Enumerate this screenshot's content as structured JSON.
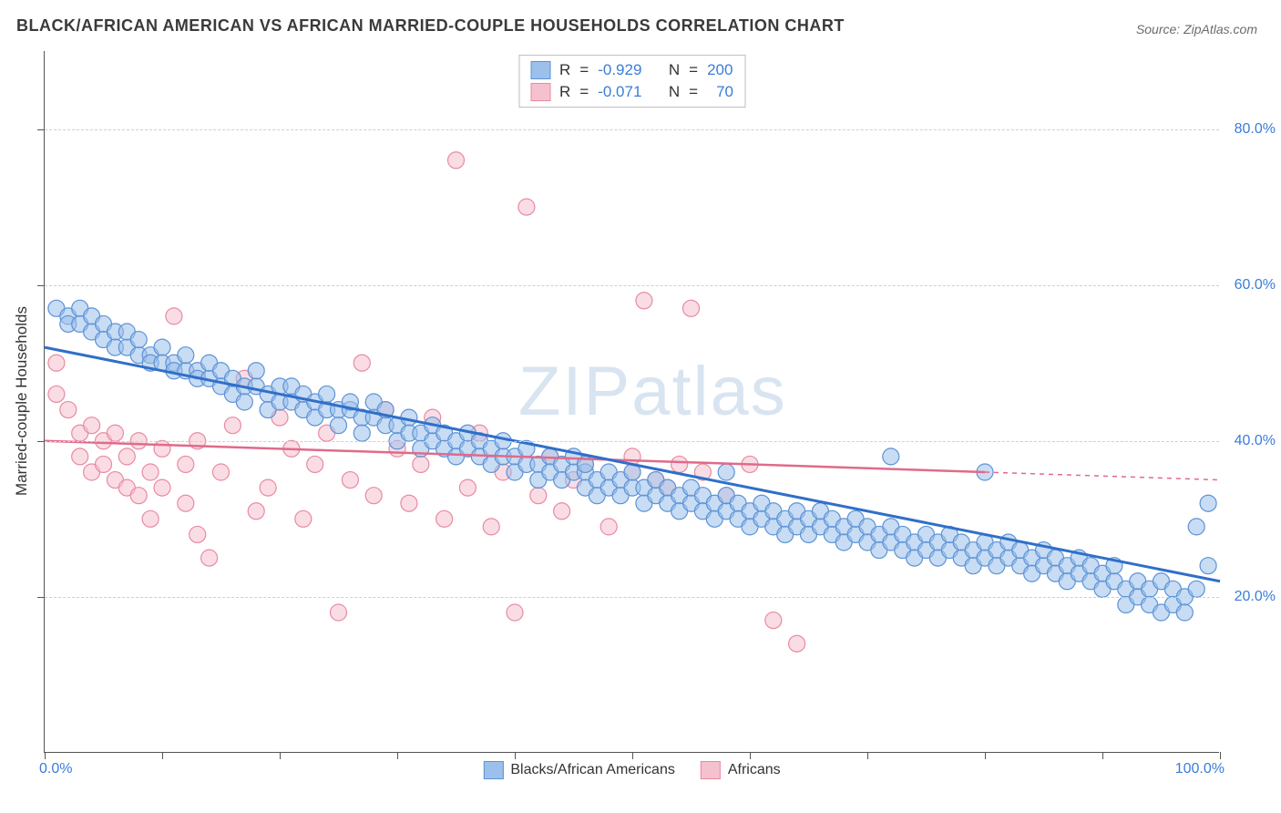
{
  "title": "BLACK/AFRICAN AMERICAN VS AFRICAN MARRIED-COUPLE HOUSEHOLDS CORRELATION CHART",
  "source_label": "Source: ZipAtlas.com",
  "ylabel": "Married-couple Households",
  "watermark": "ZIPatlas",
  "chart": {
    "type": "scatter",
    "xlim": [
      0,
      100
    ],
    "ylim": [
      0,
      90
    ],
    "ytick_positions": [
      20,
      40,
      60,
      80
    ],
    "ytick_labels": [
      "20.0%",
      "40.0%",
      "60.0%",
      "80.0%"
    ],
    "xtick_positions": [
      0,
      10,
      20,
      30,
      40,
      50,
      60,
      70,
      80,
      90,
      100
    ],
    "xtick_left": "0.0%",
    "xtick_right": "100.0%",
    "background_color": "#ffffff",
    "grid_color": "#cfcfcf",
    "marker_radius": 9,
    "marker_opacity": 0.55,
    "series": [
      {
        "name": "Blacks/African Americans",
        "color_fill": "#9bc0eb",
        "color_stroke": "#5c93d6",
        "line_color": "#2f6fc9",
        "line_width": 3,
        "R_label": "R",
        "R_value": "-0.929",
        "N_label": "N",
        "N_value": "200",
        "trend": {
          "x1": 0,
          "y1": 52,
          "x2": 100,
          "y2": 22
        },
        "trend_dash_after": 100,
        "points": [
          [
            1,
            57
          ],
          [
            2,
            56
          ],
          [
            2,
            55
          ],
          [
            3,
            57
          ],
          [
            3,
            55
          ],
          [
            4,
            54
          ],
          [
            4,
            56
          ],
          [
            5,
            55
          ],
          [
            5,
            53
          ],
          [
            6,
            54
          ],
          [
            6,
            52
          ],
          [
            7,
            52
          ],
          [
            7,
            54
          ],
          [
            8,
            51
          ],
          [
            8,
            53
          ],
          [
            9,
            51
          ],
          [
            9,
            50
          ],
          [
            10,
            52
          ],
          [
            10,
            50
          ],
          [
            11,
            50
          ],
          [
            11,
            49
          ],
          [
            12,
            49
          ],
          [
            12,
            51
          ],
          [
            13,
            49
          ],
          [
            13,
            48
          ],
          [
            14,
            48
          ],
          [
            14,
            50
          ],
          [
            15,
            49
          ],
          [
            15,
            47
          ],
          [
            16,
            48
          ],
          [
            16,
            46
          ],
          [
            17,
            47
          ],
          [
            17,
            45
          ],
          [
            18,
            47
          ],
          [
            18,
            49
          ],
          [
            19,
            46
          ],
          [
            19,
            44
          ],
          [
            20,
            47
          ],
          [
            20,
            45
          ],
          [
            21,
            45
          ],
          [
            21,
            47
          ],
          [
            22,
            46
          ],
          [
            22,
            44
          ],
          [
            23,
            45
          ],
          [
            23,
            43
          ],
          [
            24,
            44
          ],
          [
            24,
            46
          ],
          [
            25,
            44
          ],
          [
            25,
            42
          ],
          [
            26,
            44
          ],
          [
            26,
            45
          ],
          [
            27,
            43
          ],
          [
            27,
            41
          ],
          [
            28,
            43
          ],
          [
            28,
            45
          ],
          [
            29,
            42
          ],
          [
            29,
            44
          ],
          [
            30,
            42
          ],
          [
            30,
            40
          ],
          [
            31,
            43
          ],
          [
            31,
            41
          ],
          [
            32,
            41
          ],
          [
            32,
            39
          ],
          [
            33,
            40
          ],
          [
            33,
            42
          ],
          [
            34,
            41
          ],
          [
            34,
            39
          ],
          [
            35,
            40
          ],
          [
            35,
            38
          ],
          [
            36,
            39
          ],
          [
            36,
            41
          ],
          [
            37,
            40
          ],
          [
            37,
            38
          ],
          [
            38,
            39
          ],
          [
            38,
            37
          ],
          [
            39,
            38
          ],
          [
            39,
            40
          ],
          [
            40,
            38
          ],
          [
            40,
            36
          ],
          [
            41,
            37
          ],
          [
            41,
            39
          ],
          [
            42,
            37
          ],
          [
            42,
            35
          ],
          [
            43,
            38
          ],
          [
            43,
            36
          ],
          [
            44,
            37
          ],
          [
            44,
            35
          ],
          [
            45,
            36
          ],
          [
            45,
            38
          ],
          [
            46,
            36
          ],
          [
            46,
            34
          ],
          [
            47,
            35
          ],
          [
            47,
            33
          ],
          [
            48,
            36
          ],
          [
            48,
            34
          ],
          [
            49,
            35
          ],
          [
            49,
            33
          ],
          [
            50,
            34
          ],
          [
            50,
            36
          ],
          [
            51,
            34
          ],
          [
            51,
            32
          ],
          [
            52,
            33
          ],
          [
            52,
            35
          ],
          [
            53,
            34
          ],
          [
            53,
            32
          ],
          [
            54,
            33
          ],
          [
            54,
            31
          ],
          [
            55,
            32
          ],
          [
            55,
            34
          ],
          [
            56,
            33
          ],
          [
            56,
            31
          ],
          [
            57,
            32
          ],
          [
            57,
            30
          ],
          [
            58,
            31
          ],
          [
            58,
            33
          ],
          [
            59,
            32
          ],
          [
            59,
            30
          ],
          [
            60,
            31
          ],
          [
            60,
            29
          ],
          [
            61,
            30
          ],
          [
            61,
            32
          ],
          [
            62,
            31
          ],
          [
            62,
            29
          ],
          [
            63,
            30
          ],
          [
            63,
            28
          ],
          [
            64,
            29
          ],
          [
            64,
            31
          ],
          [
            65,
            30
          ],
          [
            65,
            28
          ],
          [
            66,
            29
          ],
          [
            66,
            31
          ],
          [
            67,
            28
          ],
          [
            67,
            30
          ],
          [
            68,
            29
          ],
          [
            68,
            27
          ],
          [
            69,
            28
          ],
          [
            69,
            30
          ],
          [
            70,
            29
          ],
          [
            70,
            27
          ],
          [
            71,
            28
          ],
          [
            71,
            26
          ],
          [
            72,
            27
          ],
          [
            72,
            29
          ],
          [
            73,
            28
          ],
          [
            73,
            26
          ],
          [
            74,
            27
          ],
          [
            74,
            25
          ],
          [
            75,
            28
          ],
          [
            75,
            26
          ],
          [
            76,
            27
          ],
          [
            76,
            25
          ],
          [
            77,
            26
          ],
          [
            77,
            28
          ],
          [
            78,
            27
          ],
          [
            78,
            25
          ],
          [
            79,
            26
          ],
          [
            79,
            24
          ],
          [
            80,
            25
          ],
          [
            80,
            27
          ],
          [
            81,
            26
          ],
          [
            81,
            24
          ],
          [
            82,
            25
          ],
          [
            82,
            27
          ],
          [
            83,
            24
          ],
          [
            83,
            26
          ],
          [
            84,
            25
          ],
          [
            84,
            23
          ],
          [
            85,
            24
          ],
          [
            85,
            26
          ],
          [
            86,
            25
          ],
          [
            86,
            23
          ],
          [
            87,
            24
          ],
          [
            87,
            22
          ],
          [
            88,
            23
          ],
          [
            88,
            25
          ],
          [
            89,
            24
          ],
          [
            89,
            22
          ],
          [
            90,
            23
          ],
          [
            90,
            21
          ],
          [
            91,
            22
          ],
          [
            91,
            24
          ],
          [
            92,
            21
          ],
          [
            92,
            19
          ],
          [
            93,
            22
          ],
          [
            93,
            20
          ],
          [
            94,
            21
          ],
          [
            94,
            19
          ],
          [
            95,
            18
          ],
          [
            95,
            22
          ],
          [
            96,
            21
          ],
          [
            96,
            19
          ],
          [
            97,
            20
          ],
          [
            97,
            18
          ],
          [
            98,
            21
          ],
          [
            98,
            29
          ],
          [
            99,
            24
          ],
          [
            99,
            32
          ],
          [
            46,
            37
          ],
          [
            58,
            36
          ],
          [
            72,
            38
          ],
          [
            80,
            36
          ]
        ]
      },
      {
        "name": "Africans",
        "color_fill": "#f6c1ce",
        "color_stroke": "#e88aa2",
        "line_color": "#e06a8a",
        "line_width": 2.5,
        "R_label": "R",
        "R_value": "-0.071",
        "N_label": "N",
        "N_value": "70",
        "trend": {
          "x1": 0,
          "y1": 40,
          "x2": 80,
          "y2": 36
        },
        "trend_dash_after": 80,
        "trend_dash_end": {
          "x2": 100,
          "y2": 35
        },
        "points": [
          [
            1,
            50
          ],
          [
            1,
            46
          ],
          [
            2,
            44
          ],
          [
            3,
            41
          ],
          [
            3,
            38
          ],
          [
            4,
            42
          ],
          [
            4,
            36
          ],
          [
            5,
            40
          ],
          [
            5,
            37
          ],
          [
            6,
            41
          ],
          [
            6,
            35
          ],
          [
            7,
            38
          ],
          [
            7,
            34
          ],
          [
            8,
            40
          ],
          [
            8,
            33
          ],
          [
            9,
            36
          ],
          [
            9,
            30
          ],
          [
            10,
            39
          ],
          [
            10,
            34
          ],
          [
            11,
            56
          ],
          [
            12,
            37
          ],
          [
            12,
            32
          ],
          [
            13,
            40
          ],
          [
            13,
            28
          ],
          [
            14,
            25
          ],
          [
            15,
            36
          ],
          [
            16,
            42
          ],
          [
            17,
            48
          ],
          [
            18,
            31
          ],
          [
            19,
            34
          ],
          [
            20,
            43
          ],
          [
            21,
            39
          ],
          [
            22,
            30
          ],
          [
            23,
            37
          ],
          [
            24,
            41
          ],
          [
            25,
            18
          ],
          [
            26,
            35
          ],
          [
            27,
            50
          ],
          [
            28,
            33
          ],
          [
            29,
            44
          ],
          [
            30,
            39
          ],
          [
            31,
            32
          ],
          [
            32,
            37
          ],
          [
            33,
            43
          ],
          [
            34,
            30
          ],
          [
            35,
            76
          ],
          [
            36,
            34
          ],
          [
            37,
            41
          ],
          [
            38,
            29
          ],
          [
            39,
            36
          ],
          [
            40,
            18
          ],
          [
            41,
            70
          ],
          [
            42,
            33
          ],
          [
            43,
            38
          ],
          [
            44,
            31
          ],
          [
            45,
            35
          ],
          [
            46,
            37
          ],
          [
            48,
            29
          ],
          [
            50,
            38
          ],
          [
            51,
            58
          ],
          [
            53,
            34
          ],
          [
            55,
            57
          ],
          [
            56,
            36
          ],
          [
            58,
            33
          ],
          [
            60,
            37
          ],
          [
            62,
            17
          ],
          [
            64,
            14
          ],
          [
            50,
            36
          ],
          [
            52,
            35
          ],
          [
            54,
            37
          ]
        ]
      }
    ],
    "bottom_legend": [
      {
        "label": "Blacks/African Americans",
        "fill": "#9bc0eb",
        "stroke": "#5c93d6"
      },
      {
        "label": "Africans",
        "fill": "#f6c1ce",
        "stroke": "#e88aa2"
      }
    ]
  }
}
